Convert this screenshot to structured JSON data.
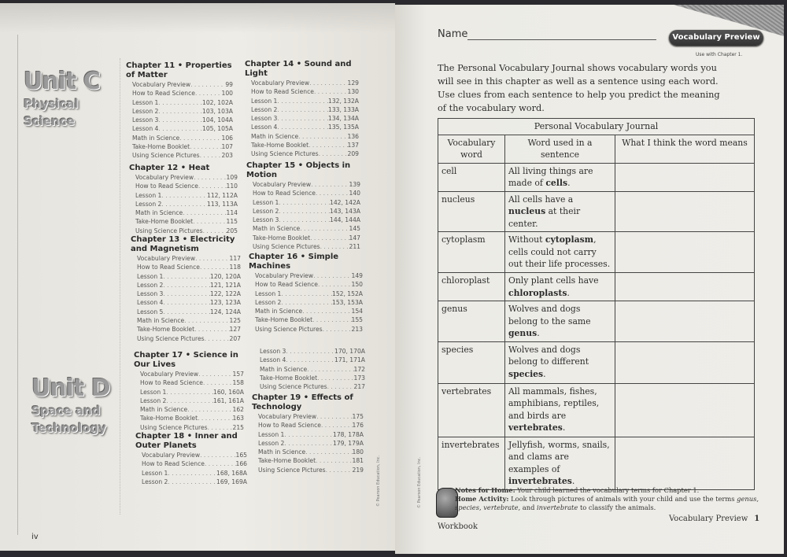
{
  "left_page": {
    "unit_c": {
      "title": "Unit C",
      "subtitle1": "Physical",
      "subtitle2": "Science"
    },
    "unit_d": {
      "title": "Unit D",
      "subtitle1": "Space and",
      "subtitle2": "Technology"
    },
    "chapters": [
      {
        "title": "Chapter 11 • Properties of Matter",
        "entries": [
          [
            "Vocabulary Preview",
            "99"
          ],
          [
            "How to Read Science",
            "100"
          ],
          [
            "Lesson 1",
            "102, 102A"
          ],
          [
            "Lesson 2",
            "103, 103A"
          ],
          [
            "Lesson 3",
            "104, 104A"
          ],
          [
            "Lesson 4",
            "105, 105A"
          ],
          [
            "Math in Science",
            "106"
          ],
          [
            "Take-Home Booklet",
            "107"
          ],
          [
            "Using Science Pictures",
            "203"
          ]
        ]
      },
      {
        "title": "Chapter 12 • Heat",
        "entries": [
          [
            "Vocabulary Preview",
            "109"
          ],
          [
            "How to Read Science",
            "110"
          ],
          [
            "Lesson 1",
            "112, 112A"
          ],
          [
            "Lesson 2",
            "113, 113A"
          ],
          [
            "Math in Science",
            "114"
          ],
          [
            "Take-Home Booklet",
            "115"
          ],
          [
            "Using Science Pictures",
            "205"
          ]
        ]
      },
      {
        "title": "Chapter 13 • Electricity and Magnetism",
        "entries": [
          [
            "Vocabulary Preview",
            "117"
          ],
          [
            "How to Read Science",
            "118"
          ],
          [
            "Lesson 1",
            "120, 120A"
          ],
          [
            "Lesson 2",
            "121, 121A"
          ],
          [
            "Lesson 3",
            "122, 122A"
          ],
          [
            "Lesson 4",
            "123, 123A"
          ],
          [
            "Lesson 5",
            "124, 124A"
          ],
          [
            "Math in Science",
            "125"
          ],
          [
            "Take-Home Booklet",
            "127"
          ],
          [
            "Using Science Pictures",
            "207"
          ]
        ]
      },
      {
        "title": "Chapter 14 • Sound and Light",
        "entries": [
          [
            "Vocabulary Preview",
            "129"
          ],
          [
            "How to Read Science",
            "130"
          ],
          [
            "Lesson 1",
            "132, 132A"
          ],
          [
            "Lesson 2",
            "133, 133A"
          ],
          [
            "Lesson 3",
            "134, 134A"
          ],
          [
            "Lesson 4",
            "135, 135A"
          ],
          [
            "Math in Science",
            "136"
          ],
          [
            "Take-Home Booklet",
            "137"
          ],
          [
            "Using Science Pictures",
            "209"
          ]
        ]
      },
      {
        "title": "Chapter 15 • Objects in Motion",
        "entries": [
          [
            "Vocabulary Preview",
            "139"
          ],
          [
            "How to Read Science",
            "140"
          ],
          [
            "Lesson 1",
            "142, 142A"
          ],
          [
            "Lesson 2",
            "143, 143A"
          ],
          [
            "Lesson 3",
            "144, 144A"
          ],
          [
            "Math in Science",
            "145"
          ],
          [
            "Take-Home Booklet",
            "147"
          ],
          [
            "Using Science Pictures",
            "211"
          ]
        ]
      },
      {
        "title": "Chapter 16 • Simple Machines",
        "entries": [
          [
            "Vocabulary Preview",
            "149"
          ],
          [
            "How to Read Science",
            "150"
          ],
          [
            "Lesson 1",
            "152, 152A"
          ],
          [
            "Lesson 2",
            "153, 153A"
          ],
          [
            "Math in Science",
            "154"
          ],
          [
            "Take-Home Booklet",
            "155"
          ],
          [
            "Using Science Pictures",
            "213"
          ]
        ]
      },
      {
        "title": "Chapter 17 • Science in Our Lives",
        "entries": [
          [
            "Vocabulary Preview",
            "157"
          ],
          [
            "How to Read Science",
            "158"
          ],
          [
            "Lesson 1",
            "160, 160A"
          ],
          [
            "Lesson 2",
            "161, 161A"
          ],
          [
            "Math in Science",
            "162"
          ],
          [
            "Take-Home Booklet",
            "163"
          ],
          [
            "Using Science Pictures",
            "215"
          ]
        ]
      },
      {
        "title": "Chapter 18 • Inner and Outer Planets",
        "entries": [
          [
            "Vocabulary Preview",
            "165"
          ],
          [
            "How to Read Science",
            "166"
          ],
          [
            "Lesson 1",
            "168, 168A"
          ],
          [
            "Lesson 2",
            "169, 169A"
          ]
        ]
      },
      {
        "title": "",
        "entries": [
          [
            "Lesson 3",
            "170, 170A"
          ],
          [
            "Lesson 4",
            "171, 171A"
          ],
          [
            "Math in Science",
            "172"
          ],
          [
            "Take-Home Booklet",
            "173"
          ],
          [
            "Using Science Pictures",
            "217"
          ]
        ]
      },
      {
        "title": "Chapter 19 • Effects of Technology",
        "entries": [
          [
            "Vocabulary Preview",
            "175"
          ],
          [
            "How to Read Science",
            "176"
          ],
          [
            "Lesson 1",
            "178, 178A"
          ],
          [
            "Lesson 2",
            "179, 179A"
          ],
          [
            "Math in Science",
            "180"
          ],
          [
            "Take-Home Booklet",
            "181"
          ],
          [
            "Using Science Pictures",
            "219"
          ]
        ]
      }
    ],
    "copyright": "© Pearson Education, Inc.",
    "page_number": "iv"
  },
  "right_page": {
    "name_label": "Name",
    "badge": "Vocabulary Preview",
    "use_with": "Use with Chapter 1.",
    "intro": "The Personal Vocabulary Journal shows vocabulary words you will see in this chapter as well as a sentence using each word. Use clues from each sentence to help you predict the meaning of the vocabulary word.",
    "table": {
      "title": "Personal Vocabulary Journal",
      "headers": [
        "Vocabulary word",
        "Word used in a sentence",
        "What I think the word means"
      ],
      "rows": [
        {
          "word": "cell",
          "pre": "All living things are made of ",
          "bold": "cells",
          "post": "."
        },
        {
          "word": "nucleus",
          "pre": "All cells have a ",
          "bold": "nucleus",
          "post": " at their center."
        },
        {
          "word": "cytoplasm",
          "pre": "Without ",
          "bold": "cytoplasm",
          "post": ", cells could not carry out their life processes."
        },
        {
          "word": "chloroplast",
          "pre": "Only plant cells have ",
          "bold": "chloroplasts",
          "post": "."
        },
        {
          "word": "genus",
          "pre": "Wolves and dogs belong to the same ",
          "bold": "genus",
          "post": "."
        },
        {
          "word": "species",
          "pre": "Wolves and dogs belong to different ",
          "bold": "species",
          "post": "."
        },
        {
          "word": "vertebrates",
          "pre": "All mammals, fishes, amphibians, reptiles, and birds are ",
          "bold": "vertebrates",
          "post": "."
        },
        {
          "word": "invertebrates",
          "pre": "Jellyfish, worms, snails, and clams are examples of ",
          "bold": "invertebrates",
          "post": "."
        }
      ]
    },
    "notes": {
      "label1": "Notes for Home:",
      "text1": " Your child learned the vocabulary terms for Chapter 1.",
      "label2": "Home Activity:",
      "text2": " Look through pictures of animals with your child and use the terms ",
      "terms": "genus, species, vertebrate,",
      "and": " and ",
      "term_last": "invertebrate",
      "text3": " to classify the animals."
    },
    "copyright": "© Pearson Education, Inc.",
    "footer_left": "Workbook",
    "footer_right": "Vocabulary Preview",
    "page_number": "1"
  }
}
